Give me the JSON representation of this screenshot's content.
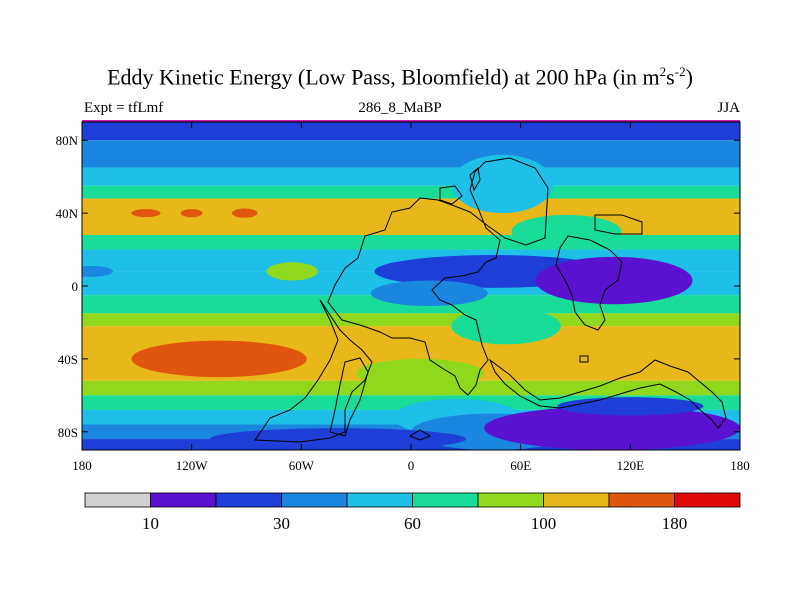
{
  "chart_data": {
    "type": "heatmap",
    "title": "Eddy Kinetic Energy (Low Pass, Bloomfield) at 200 hPa (in m",
    "title_units_sup1": "2",
    "title_units_mid": "s",
    "title_units_sup2": "-2",
    "title_units_end": ")",
    "left_label": "Expt = tfLmf",
    "center_label": "286_8_MaBP",
    "right_label": "JJA",
    "x_axis": {
      "range": [
        0,
        360
      ],
      "ticks": [
        0,
        60,
        120,
        180,
        240,
        300,
        360
      ],
      "tick_labels": [
        "180",
        "120W",
        "60W",
        "0",
        "60E",
        "120E",
        "180"
      ]
    },
    "y_axis": {
      "range": [
        -90,
        90
      ],
      "ticks": [
        80,
        40,
        0,
        -40,
        -80
      ],
      "tick_labels": [
        "80N",
        "40N",
        "0",
        "40S",
        "80S"
      ]
    },
    "colorbar": {
      "colors": [
        "#d0d0d0",
        "#5a12d0",
        "#1e3ed8",
        "#1a86e0",
        "#1ec0e8",
        "#18dc98",
        "#8fd81c",
        "#e8b81a",
        "#e0560c",
        "#e00808"
      ],
      "labels": [
        "10",
        "30",
        "60",
        "100",
        "180"
      ],
      "label_boundaries": [
        1,
        3,
        5,
        7,
        9
      ]
    },
    "lat_bands": [
      {
        "lat": [
          80,
          90
        ],
        "level": 2
      },
      {
        "lat": [
          65,
          80
        ],
        "level": 3
      },
      {
        "lat": [
          55,
          65
        ],
        "level": 4
      },
      {
        "lat": [
          48,
          55
        ],
        "level": 5
      },
      {
        "lat": [
          28,
          48
        ],
        "level": 7
      },
      {
        "lat": [
          20,
          28
        ],
        "level": 5
      },
      {
        "lat": [
          8,
          20
        ],
        "level": 4
      },
      {
        "lat": [
          -5,
          8
        ],
        "level": 4
      },
      {
        "lat": [
          -15,
          -5
        ],
        "level": 5
      },
      {
        "lat": [
          -22,
          -15
        ],
        "level": 6
      },
      {
        "lat": [
          -52,
          -22
        ],
        "level": 7
      },
      {
        "lat": [
          -60,
          -52
        ],
        "level": 6
      },
      {
        "lat": [
          -68,
          -60
        ],
        "level": 5
      },
      {
        "lat": [
          -76,
          -68
        ],
        "level": 4
      },
      {
        "lat": [
          -84,
          -76
        ],
        "level": 3
      },
      {
        "lat": [
          -90,
          -84
        ],
        "level": 2
      }
    ],
    "patches": [
      {
        "lon": 35,
        "lat": 40,
        "rlon": 8,
        "rlat": 2.2,
        "level": 8
      },
      {
        "lon": 60,
        "lat": 40,
        "rlon": 6,
        "rlat": 2.2,
        "level": 8
      },
      {
        "lon": 89,
        "lat": 40,
        "rlon": 7,
        "rlat": 2.5,
        "level": 8
      },
      {
        "lon": 75,
        "lat": -40,
        "rlon": 48,
        "rlat": 10,
        "level": 8
      },
      {
        "lon": 115,
        "lat": 8,
        "rlon": 14,
        "rlat": 5,
        "level": 6
      },
      {
        "lon": 230,
        "lat": 56,
        "rlon": 28,
        "rlat": 16,
        "level": 4
      },
      {
        "lon": 265,
        "lat": 30,
        "rlon": 30,
        "rlat": 9,
        "level": 5
      },
      {
        "lon": 225,
        "lat": 8,
        "rlon": 65,
        "rlat": 9,
        "level": 2
      },
      {
        "lon": 190,
        "lat": -4,
        "rlon": 32,
        "rlat": 7,
        "level": 3
      },
      {
        "lon": 291,
        "lat": 3,
        "rlon": 43,
        "rlat": 13,
        "level": 1
      },
      {
        "lon": 232,
        "lat": -22,
        "rlon": 30,
        "rlat": 10,
        "level": 5
      },
      {
        "lon": 185,
        "lat": -48,
        "rlon": 35,
        "rlat": 8,
        "level": 6
      },
      {
        "lon": 205,
        "lat": -72,
        "rlon": 35,
        "rlat": 10,
        "level": 4
      },
      {
        "lon": 225,
        "lat": -80,
        "rlon": 45,
        "rlat": 10,
        "level": 3
      },
      {
        "lon": 290,
        "lat": -78,
        "rlon": 70,
        "rlat": 12,
        "level": 1
      },
      {
        "lon": 300,
        "lat": -66,
        "rlon": 40,
        "rlat": 5,
        "level": 2
      },
      {
        "lon": 5,
        "lat": 8,
        "rlon": 12,
        "rlat": 3,
        "level": 3
      },
      {
        "lon": 140,
        "lat": -84,
        "rlon": 70,
        "rlat": 6,
        "level": 2
      }
    ]
  }
}
